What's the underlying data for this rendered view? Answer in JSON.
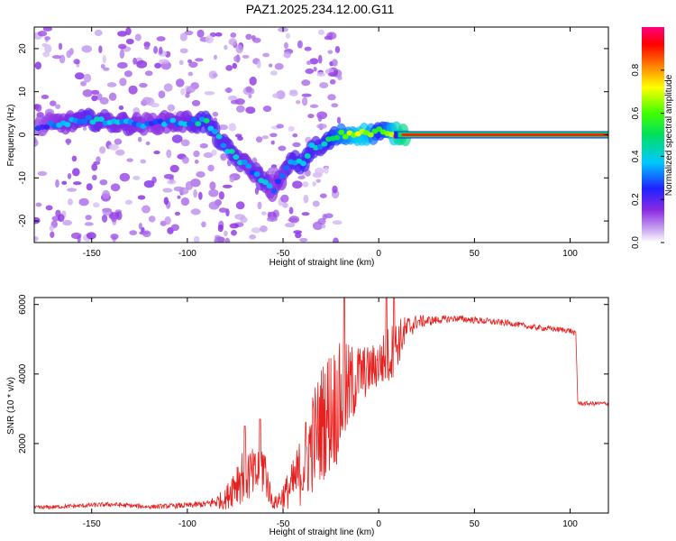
{
  "title": "PAZ1.2025.234.12.00.G11",
  "colors": {
    "snr_line": "#e8201e",
    "frame": "#000000"
  },
  "chart_data": [
    {
      "type": "heatmap",
      "name": "spectrogram",
      "xlabel": "Height of straight line (km)",
      "ylabel": "Frequency (Hz)",
      "xlim": [
        -180,
        120
      ],
      "ylim": [
        -25,
        25
      ],
      "xticks": [
        -150,
        -100,
        -50,
        0,
        50,
        100
      ],
      "yticks": [
        -20,
        -10,
        0,
        10,
        20
      ],
      "xtick_labels": [
        "-150",
        "-100",
        "-50",
        "0",
        "50",
        "100"
      ],
      "ytick_labels": [
        "-20",
        "-10",
        "0",
        "10",
        "20"
      ],
      "colorbar": {
        "label": "Normalized spectral amplitude",
        "range": [
          0.0,
          1.0
        ],
        "ticks": [
          0.0,
          0.2,
          0.4,
          0.6,
          0.8
        ],
        "tick_labels": [
          "0.0",
          "0.2",
          "0.4",
          "0.6",
          "0.8"
        ]
      },
      "ridge": [
        {
          "x": -170,
          "f": 2.5,
          "a": 0.25
        },
        {
          "x": -160,
          "f": 3.0,
          "a": 0.3
        },
        {
          "x": -150,
          "f": 3.5,
          "a": 0.35
        },
        {
          "x": -140,
          "f": 3.0,
          "a": 0.3
        },
        {
          "x": -130,
          "f": 2.5,
          "a": 0.3
        },
        {
          "x": -120,
          "f": 2.5,
          "a": 0.25
        },
        {
          "x": -110,
          "f": 3.0,
          "a": 0.28
        },
        {
          "x": -100,
          "f": 3.0,
          "a": 0.3
        },
        {
          "x": -90,
          "f": 3.0,
          "a": 0.4
        },
        {
          "x": -85,
          "f": 0.0,
          "a": 0.35
        },
        {
          "x": -80,
          "f": -3.0,
          "a": 0.35
        },
        {
          "x": -75,
          "f": -5.0,
          "a": 0.35
        },
        {
          "x": -70,
          "f": -7.0,
          "a": 0.3
        },
        {
          "x": -65,
          "f": -8.5,
          "a": 0.3
        },
        {
          "x": -60,
          "f": -11.0,
          "a": 0.35
        },
        {
          "x": -55,
          "f": -13.0,
          "a": 0.25
        },
        {
          "x": -45,
          "f": -6.0,
          "a": 0.35
        },
        {
          "x": -40,
          "f": -7.0,
          "a": 0.4
        },
        {
          "x": -35,
          "f": -3.0,
          "a": 0.4
        },
        {
          "x": -30,
          "f": -3.0,
          "a": 0.35
        },
        {
          "x": -25,
          "f": -1.0,
          "a": 0.45
        },
        {
          "x": -20,
          "f": 0.0,
          "a": 0.55
        },
        {
          "x": -15,
          "f": 0.0,
          "a": 0.6
        },
        {
          "x": -10,
          "f": 0.3,
          "a": 0.7
        },
        {
          "x": -5,
          "f": 0.0,
          "a": 0.65
        },
        {
          "x": 0,
          "f": 0.8,
          "a": 0.45
        },
        {
          "x": 5,
          "f": 0.5,
          "a": 0.55
        },
        {
          "x": 10,
          "f": 0.2,
          "a": 0.8
        },
        {
          "x": 20,
          "f": 0.0,
          "a": 0.95
        },
        {
          "x": 60,
          "f": 0.0,
          "a": 0.95
        },
        {
          "x": 118,
          "f": 0.0,
          "a": 0.95
        }
      ]
    },
    {
      "type": "line",
      "name": "snr",
      "xlabel": "Height of straight line (km)",
      "ylabel": "SNR (10 * v/v)",
      "xlim": [
        -180,
        120
      ],
      "ylim": [
        0,
        6200
      ],
      "xticks": [
        -150,
        -100,
        -50,
        0,
        50,
        100
      ],
      "yticks": [
        2000,
        4000,
        6000
      ],
      "xtick_labels": [
        "-150",
        "-100",
        "-50",
        "0",
        "50",
        "100"
      ],
      "ytick_labels": [
        "2000",
        "4000",
        "6000"
      ],
      "x": [
        -180,
        -160,
        -140,
        -120,
        -100,
        -90,
        -80,
        -75,
        -70,
        -65,
        -60,
        -57,
        -55,
        -50,
        -45,
        -40,
        -35,
        -30,
        -25,
        -20,
        -15,
        -10,
        -5,
        0,
        5,
        10,
        15,
        20,
        30,
        40,
        50,
        60,
        70,
        80,
        90,
        100,
        103,
        104,
        105,
        110,
        120
      ],
      "mean": [
        150,
        200,
        250,
        180,
        220,
        260,
        400,
        900,
        1200,
        1000,
        1400,
        600,
        250,
        500,
        800,
        1300,
        2000,
        2600,
        3000,
        3200,
        3600,
        4000,
        4100,
        4300,
        4500,
        4900,
        5300,
        5500,
        5550,
        5600,
        5550,
        5500,
        5450,
        5350,
        5300,
        5250,
        5150,
        3200,
        3150,
        3150,
        3150
      ],
      "jitter": [
        60,
        60,
        70,
        60,
        80,
        100,
        300,
        700,
        900,
        800,
        900,
        400,
        150,
        400,
        700,
        1100,
        1500,
        1700,
        1900,
        1700,
        1300,
        900,
        700,
        700,
        900,
        700,
        400,
        200,
        120,
        100,
        100,
        100,
        80,
        80,
        80,
        80,
        80,
        60,
        60,
        60,
        60
      ],
      "spikes": [
        {
          "x": -18,
          "y": 6200
        },
        {
          "x": 4,
          "y": 6200
        },
        {
          "x": 8,
          "y": 6200
        },
        {
          "x": -62,
          "y": 2700
        },
        {
          "x": -70,
          "y": 2500
        }
      ]
    }
  ]
}
